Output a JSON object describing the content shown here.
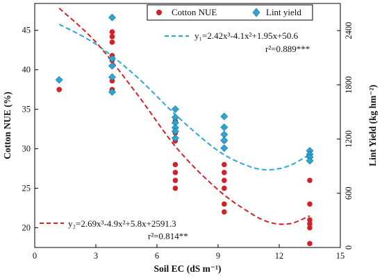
{
  "chart_data": {
    "type": "scatter",
    "xlabel": "Soil EC (dS m⁻¹)",
    "ylabel_left": "Cotton NUE (%)",
    "ylabel_right": "Lint Yield (kg hm⁻²)",
    "xlim": [
      0,
      15
    ],
    "ylim_left": [
      17.5,
      48.4
    ],
    "ylim_right": [
      0,
      2700
    ],
    "xticks": [
      0,
      3,
      6,
      9,
      12,
      15
    ],
    "yticks_left": [
      20,
      25,
      30,
      35,
      40,
      45
    ],
    "yticks_right": [
      0,
      600,
      1200,
      1800,
      2400
    ],
    "legend_position": "top-right",
    "series": [
      {
        "name": "Cotton NUE",
        "axis": "left",
        "marker": "circle",
        "color": "#d62027",
        "x": [
          1.2,
          3.8,
          3.8,
          3.8,
          3.8,
          3.8,
          3.8,
          3.8,
          6.9,
          6.9,
          6.9,
          6.9,
          6.9,
          6.9,
          6.9,
          9.3,
          9.3,
          9.3,
          9.3,
          9.3,
          9.3,
          9.3,
          13.5,
          13.5,
          13.5,
          13.5,
          13.5,
          13.5,
          13.5
        ],
        "y": [
          37.5,
          44.8,
          44.2,
          43.5,
          41.2,
          38.6,
          37.5,
          41.8,
          31.0,
          28.0,
          27.0,
          26.0,
          25.0,
          33.5,
          32.0,
          31.0,
          28.0,
          27.0,
          26.0,
          25.0,
          23.0,
          22.0,
          26.0,
          23.0,
          21.0,
          20.5,
          20.0,
          18.0,
          29.0
        ]
      },
      {
        "name": "Lint yield",
        "axis": "right",
        "marker": "diamond",
        "color": "#2aa7d6",
        "x": [
          1.2,
          3.8,
          3.8,
          3.8,
          3.8,
          3.8,
          6.9,
          6.9,
          6.9,
          6.9,
          6.9,
          6.9,
          9.3,
          9.3,
          9.3,
          9.3,
          9.3,
          13.5,
          13.5,
          13.5,
          13.5
        ],
        "y": [
          1855,
          2545,
          2090,
          2010,
          1885,
          1720,
          1530,
          1440,
          1380,
          1325,
          1285,
          1210,
          1450,
          1330,
          1250,
          1185,
          1100,
          1070,
          1030,
          1000,
          960
        ]
      }
    ],
    "fits": [
      {
        "label": "y₁=2.42x³-4.1x²+1.95x+50.6",
        "r2": "r²=0.889***",
        "axis": "right",
        "color": "#2aa7d6",
        "x": [
          1.2,
          3.0,
          5.0,
          7.0,
          9.0,
          10.5,
          11.5,
          12.5,
          13.5
        ],
        "y": [
          2470,
          2250,
          1890,
          1450,
          1070,
          900,
          860,
          905,
          1030
        ]
      },
      {
        "label": "y₂=2.69x³-4.9x²+5.8x+2591.3",
        "r2": "r²=0.814**",
        "axis": "left",
        "color": "#d62027",
        "x": [
          1.2,
          3.0,
          5.0,
          7.0,
          9.0,
          10.5,
          11.5,
          12.5,
          13.5
        ],
        "y": [
          47.8,
          43.5,
          37.0,
          30.0,
          24.8,
          22.0,
          20.7,
          20.5,
          21.5
        ]
      }
    ],
    "legend": [
      "Cotton NUE",
      "Lint yield"
    ],
    "equations": {
      "y1": "y₁=2.42x³-4.1x²+1.95x+50.6",
      "r2_1": "r²=0.889***",
      "y2": "y₂=2.69x³-4.9x²+5.8x+2591.3",
      "r2_2": "r²=0.814**"
    }
  }
}
